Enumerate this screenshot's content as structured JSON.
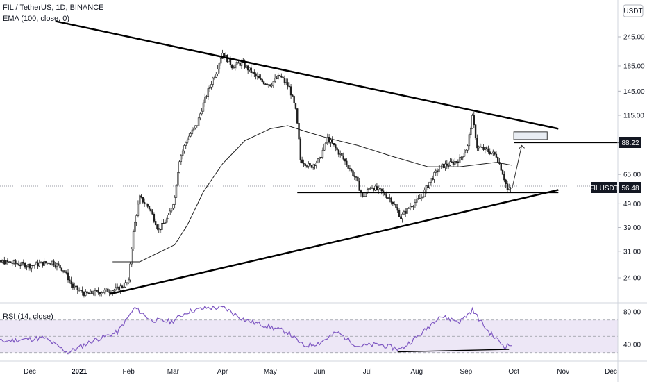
{
  "header": {
    "symbol_line": "FIL / TetherUS, 1D, BINANCE",
    "ema_line": "EMA (100, close, 0)",
    "currency": "USDT"
  },
  "rsi_panel": {
    "label": "RSI (14, close)",
    "levels": [
      70,
      50,
      30
    ]
  },
  "price_tags": {
    "target": "88.22",
    "ticker": "FILUSDT",
    "last": "56.48"
  },
  "colors": {
    "up": "#26a69a",
    "down": "#ef5350",
    "candle": "#1e1e1e",
    "rsi_line": "#7e57c2",
    "rsi_band": "#ede7f6",
    "tag_bg": "#131722",
    "ema": "#1e1e1e"
  },
  "chart_data": {
    "type": "candlestick",
    "x_axis": {
      "ticks": [
        "Dec",
        "2021",
        "Feb",
        "Mar",
        "Apr",
        "May",
        "Jun",
        "Jul",
        "Aug",
        "Sep",
        "Oct",
        "Nov",
        "Dec"
      ]
    },
    "y_axis": {
      "scale": "log",
      "ticks": [
        "245.00",
        "185.00",
        "145.00",
        "115.00",
        "88.22",
        "65.00",
        "49.00",
        "39.00",
        "31.00",
        "24.00"
      ],
      "range": [
        19,
        290
      ]
    },
    "rsi_axis": {
      "ticks": [
        "80.00",
        "40.00"
      ],
      "range": [
        20,
        95
      ]
    },
    "price_path": [
      [
        "2020-11-01",
        27
      ],
      [
        "2020-11-15",
        28
      ],
      [
        "2020-12-01",
        27
      ],
      [
        "2020-12-15",
        28
      ],
      [
        "2020-12-22",
        26
      ],
      [
        "2020-12-28",
        22
      ],
      [
        "2021-01-05",
        20.5
      ],
      [
        "2021-01-15",
        21
      ],
      [
        "2021-01-25",
        21.5
      ],
      [
        "2021-02-01",
        23
      ],
      [
        "2021-02-04",
        37
      ],
      [
        "2021-02-08",
        52
      ],
      [
        "2021-02-14",
        47
      ],
      [
        "2021-02-20",
        38
      ],
      [
        "2021-02-26",
        43
      ],
      [
        "2021-03-02",
        52
      ],
      [
        "2021-03-05",
        75
      ],
      [
        "2021-03-10",
        92
      ],
      [
        "2021-03-16",
        105
      ],
      [
        "2021-03-22",
        140
      ],
      [
        "2021-03-28",
        175
      ],
      [
        "2021-04-01",
        210
      ],
      [
        "2021-04-07",
        185
      ],
      [
        "2021-04-13",
        190
      ],
      [
        "2021-04-19",
        175
      ],
      [
        "2021-04-25",
        160
      ],
      [
        "2021-05-01",
        155
      ],
      [
        "2021-05-07",
        168
      ],
      [
        "2021-05-13",
        150
      ],
      [
        "2021-05-17",
        120
      ],
      [
        "2021-05-20",
        75
      ],
      [
        "2021-05-26",
        70
      ],
      [
        "2021-06-01",
        75
      ],
      [
        "2021-06-06",
        92
      ],
      [
        "2021-06-12",
        82
      ],
      [
        "2021-06-18",
        72
      ],
      [
        "2021-06-24",
        62
      ],
      [
        "2021-06-28",
        52
      ],
      [
        "2021-07-03",
        58
      ],
      [
        "2021-07-10",
        55
      ],
      [
        "2021-07-16",
        51
      ],
      [
        "2021-07-22",
        43
      ],
      [
        "2021-07-28",
        48
      ],
      [
        "2021-08-04",
        52
      ],
      [
        "2021-08-10",
        62
      ],
      [
        "2021-08-16",
        70
      ],
      [
        "2021-08-22",
        72
      ],
      [
        "2021-08-28",
        75
      ],
      [
        "2021-09-02",
        85
      ],
      [
        "2021-09-05",
        112
      ],
      [
        "2021-09-08",
        85
      ],
      [
        "2021-09-14",
        82
      ],
      [
        "2021-09-20",
        78
      ],
      [
        "2021-09-24",
        66
      ],
      [
        "2021-09-27",
        56
      ],
      [
        "2021-09-29",
        56.48
      ]
    ],
    "ema100": [
      [
        "2021-01-22",
        28
      ],
      [
        "2021-02-08",
        28
      ],
      [
        "2021-03-02",
        33
      ],
      [
        "2021-03-10",
        40
      ],
      [
        "2021-03-20",
        55
      ],
      [
        "2021-04-01",
        72
      ],
      [
        "2021-04-15",
        90
      ],
      [
        "2021-05-01",
        101
      ],
      [
        "2021-05-12",
        104
      ],
      [
        "2021-05-24",
        98
      ],
      [
        "2021-06-07",
        92
      ],
      [
        "2021-06-25",
        86
      ],
      [
        "2021-07-15",
        78
      ],
      [
        "2021-08-08",
        70
      ],
      [
        "2021-08-28",
        70
      ],
      [
        "2021-09-20",
        73
      ],
      [
        "2021-09-30",
        71
      ]
    ],
    "rsi": [
      [
        "2020-11-01",
        42
      ],
      [
        "2020-11-20",
        45
      ],
      [
        "2020-12-10",
        48
      ],
      [
        "2020-12-25",
        30
      ],
      [
        "2021-01-10",
        45
      ],
      [
        "2021-01-25",
        55
      ],
      [
        "2021-02-05",
        85
      ],
      [
        "2021-02-15",
        70
      ],
      [
        "2021-02-28",
        68
      ],
      [
        "2021-03-10",
        80
      ],
      [
        "2021-03-22",
        85
      ],
      [
        "2021-04-02",
        85
      ],
      [
        "2021-04-15",
        70
      ],
      [
        "2021-04-30",
        62
      ],
      [
        "2021-05-12",
        55
      ],
      [
        "2021-05-22",
        38
      ],
      [
        "2021-06-01",
        42
      ],
      [
        "2021-06-12",
        55
      ],
      [
        "2021-06-25",
        38
      ],
      [
        "2021-07-08",
        40
      ],
      [
        "2021-07-22",
        34
      ],
      [
        "2021-08-05",
        55
      ],
      [
        "2021-08-15",
        75
      ],
      [
        "2021-08-28",
        68
      ],
      [
        "2021-09-05",
        82
      ],
      [
        "2021-09-15",
        56
      ],
      [
        "2021-09-25",
        38
      ],
      [
        "2021-09-30",
        40
      ]
    ],
    "annotations": {
      "upper_trendline": [
        [
          "2020-12-17",
          285
        ],
        [
          "2021-10-29",
          101
        ]
      ],
      "lower_trendline": [
        [
          "2021-01-20",
          20.5
        ],
        [
          "2021-10-29",
          56
        ]
      ],
      "support_line": [
        [
          "2021-05-18",
          54.5
        ],
        [
          "2021-10-29",
          54.5
        ]
      ],
      "target_line": [
        [
          "2021-10-01",
          88.22
        ],
        [
          "2021-12-12",
          88.22
        ]
      ],
      "target_box": [
        [
          "2021-10-01",
          98
        ],
        [
          "2021-10-22",
          91
        ]
      ],
      "arrow": [
        [
          "2021-09-30",
          57
        ],
        [
          "2021-10-06",
          86
        ]
      ],
      "rsi_divergence": [
        [
          "2021-07-20",
          31
        ],
        [
          "2021-09-28",
          34
        ]
      ]
    }
  }
}
